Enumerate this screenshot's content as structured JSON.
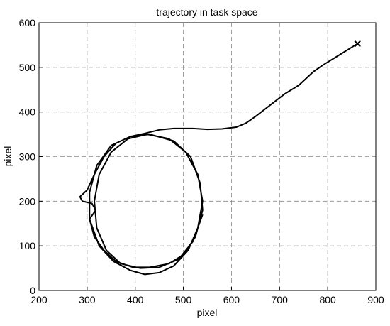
{
  "chart_data": {
    "type": "line",
    "title": "trajectory in task space",
    "xlabel": "pixel",
    "ylabel": "pixel",
    "x": [
      862,
      850,
      820,
      790,
      770,
      740,
      710,
      680,
      650,
      630,
      610,
      580,
      550,
      520,
      480,
      450,
      420,
      390,
      360,
      335,
      315,
      300,
      285,
      290,
      310,
      318,
      305,
      315,
      335,
      360,
      395,
      430,
      470,
      500,
      525,
      540,
      535,
      515,
      480,
      430,
      390,
      350,
      320,
      305,
      305,
      325,
      355,
      390,
      420,
      450,
      480,
      510,
      530,
      540,
      530,
      505,
      470,
      425,
      385,
      350,
      325,
      315,
      320,
      340,
      370,
      410,
      450,
      490,
      520,
      540
    ],
    "series": [
      {
        "color": "#000000",
        "values": [
          553,
          545,
          525,
          505,
          490,
          460,
          440,
          415,
          390,
          375,
          366,
          362,
          361,
          363,
          363,
          360,
          352,
          345,
          330,
          300,
          260,
          225,
          210,
          200,
          195,
          180,
          160,
          120,
          90,
          65,
          52,
          52,
          60,
          80,
          120,
          180,
          240,
          300,
          335,
          350,
          345,
          325,
          280,
          220,
          160,
          100,
          65,
          45,
          36,
          40,
          55,
          90,
          140,
          200,
          260,
          310,
          340,
          350,
          340,
          310,
          260,
          200,
          140,
          90,
          60,
          50,
          52,
          70,
          110,
          170
        ]
      }
    ],
    "xlim": [
      200,
      900
    ],
    "xticks": [
      200,
      300,
      400,
      500,
      600,
      700,
      800,
      900
    ],
    "ylim": [
      0,
      600
    ],
    "yticks": [
      0,
      100,
      200,
      300,
      400,
      500,
      600
    ],
    "grid": true
  }
}
